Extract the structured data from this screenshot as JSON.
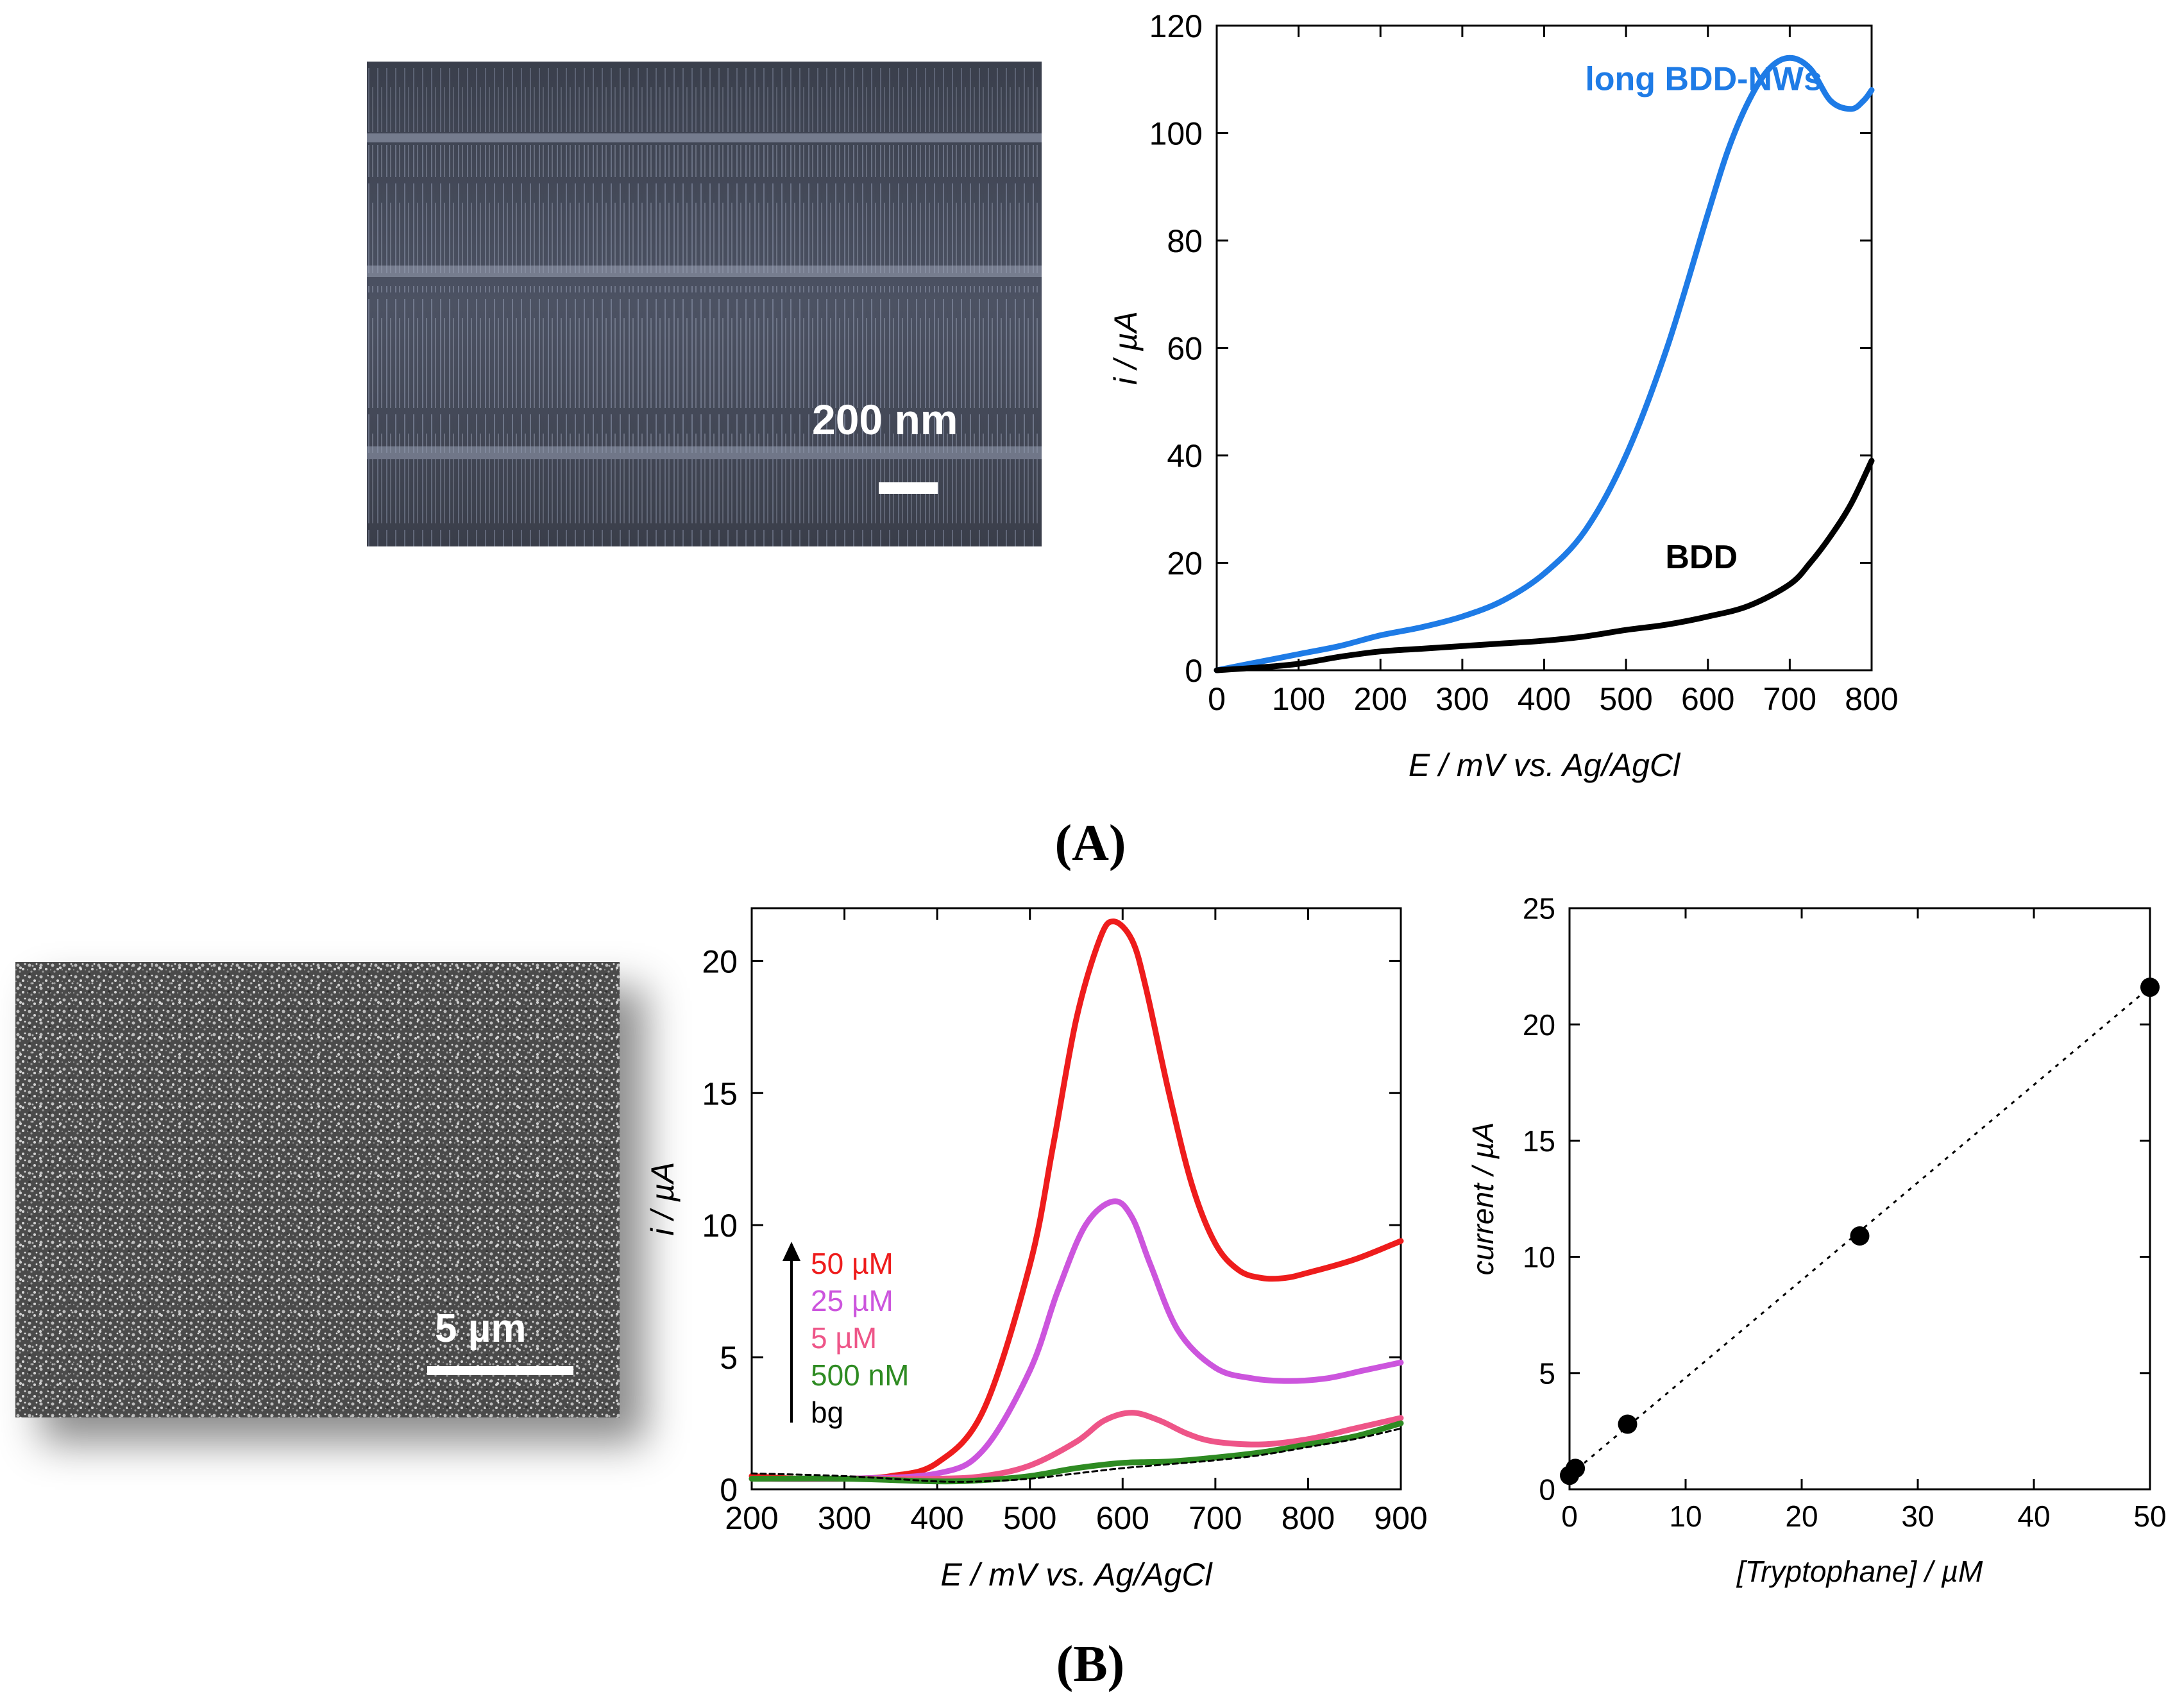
{
  "figure": {
    "panel_a_label": "(A)",
    "panel_b_label": "(B)"
  },
  "sem_a": {
    "scale_label": "200 nm"
  },
  "sem_b": {
    "scale_label": "5 µm"
  },
  "colors": {
    "blue": "#1E7BE6",
    "black": "#000000",
    "red": "#EE1C1C",
    "magenta": "#CC55DD",
    "pink": "#EE5588",
    "green": "#2E8B22",
    "bg": "#000000"
  },
  "chart_data": [
    {
      "id": "chartA",
      "type": "line",
      "xlabel": "E / mV vs. Ag/AgCl",
      "ylabel": "i / µA",
      "xlim": [
        0,
        800
      ],
      "ylim": [
        0,
        120
      ],
      "xticks": [
        0,
        100,
        200,
        300,
        400,
        500,
        600,
        700,
        800
      ],
      "yticks": [
        0,
        20,
        40,
        60,
        80,
        100,
        120
      ],
      "series": [
        {
          "name": "long BDD-NWs",
          "color": "#1E7BE6",
          "x": [
            0,
            50,
            100,
            150,
            200,
            250,
            300,
            350,
            400,
            450,
            500,
            550,
            600,
            625,
            650,
            675,
            700,
            725,
            750,
            775,
            790,
            800
          ],
          "y": [
            0,
            1.5,
            3,
            4.5,
            6.5,
            8,
            10,
            13,
            18,
            26,
            40,
            60,
            85,
            97,
            106,
            112,
            114,
            112,
            106,
            104.5,
            106,
            108
          ]
        },
        {
          "name": "BDD",
          "color": "#000000",
          "x": [
            0,
            50,
            100,
            150,
            200,
            250,
            300,
            350,
            400,
            450,
            500,
            550,
            600,
            650,
            700,
            725,
            750,
            775,
            800
          ],
          "y": [
            0,
            0.5,
            1.2,
            2.5,
            3.5,
            4,
            4.5,
            5,
            5.5,
            6.3,
            7.5,
            8.5,
            10,
            12,
            16,
            20,
            25,
            31,
            39
          ]
        }
      ],
      "annotations": [
        {
          "text": "long BDD-NWs",
          "x": 450,
          "y": 108,
          "color": "#1E7BE6"
        },
        {
          "text": "BDD",
          "x": 548,
          "y": 19,
          "color": "#000000"
        }
      ]
    },
    {
      "id": "chartB1",
      "type": "line",
      "xlabel": "E / mV vs. Ag/AgCl",
      "ylabel": "i / µA",
      "xlim": [
        200,
        900
      ],
      "ylim": [
        0,
        22
      ],
      "xticks": [
        200,
        300,
        400,
        500,
        600,
        700,
        800,
        900
      ],
      "yticks": [
        0,
        5,
        10,
        15,
        20
      ],
      "series": [
        {
          "name": "50 µM",
          "color": "#EE1C1C",
          "x": [
            200,
            250,
            300,
            350,
            400,
            450,
            500,
            525,
            550,
            575,
            590,
            610,
            625,
            650,
            675,
            700,
            725,
            750,
            775,
            800,
            850,
            900
          ],
          "y": [
            0.5,
            0.4,
            0.4,
            0.5,
            1.0,
            3.0,
            8.5,
            13.0,
            17.8,
            20.8,
            21.5,
            20.8,
            19.0,
            15.0,
            11.5,
            9.3,
            8.3,
            8.0,
            8.0,
            8.2,
            8.7,
            9.4
          ]
        },
        {
          "name": "25 µM",
          "color": "#CC55DD",
          "x": [
            200,
            300,
            400,
            450,
            500,
            530,
            560,
            590,
            610,
            630,
            660,
            700,
            740,
            780,
            820,
            860,
            900
          ],
          "y": [
            0.4,
            0.4,
            0.6,
            1.5,
            4.5,
            7.5,
            10.0,
            10.9,
            10.3,
            8.5,
            6.0,
            4.6,
            4.2,
            4.1,
            4.2,
            4.5,
            4.8
          ]
        },
        {
          "name": "5 µM",
          "color": "#EE5588",
          "x": [
            200,
            300,
            400,
            450,
            500,
            550,
            580,
            610,
            640,
            670,
            700,
            750,
            800,
            850,
            900
          ],
          "y": [
            0.4,
            0.4,
            0.4,
            0.5,
            0.9,
            1.8,
            2.6,
            2.9,
            2.6,
            2.1,
            1.8,
            1.7,
            1.9,
            2.3,
            2.7
          ]
        },
        {
          "name": "500 nM",
          "color": "#2E8B22",
          "x": [
            200,
            300,
            400,
            450,
            500,
            550,
            600,
            650,
            700,
            750,
            800,
            850,
            900
          ],
          "y": [
            0.4,
            0.4,
            0.3,
            0.35,
            0.5,
            0.8,
            1.0,
            1.05,
            1.2,
            1.4,
            1.7,
            2.0,
            2.5
          ]
        },
        {
          "name": "bg",
          "color": "#000000",
          "dashed": true,
          "x": [
            200,
            300,
            400,
            450,
            500,
            550,
            600,
            650,
            700,
            750,
            800,
            850,
            900
          ],
          "y": [
            0.6,
            0.5,
            0.3,
            0.3,
            0.4,
            0.6,
            0.8,
            0.95,
            1.1,
            1.3,
            1.6,
            1.9,
            2.3
          ]
        }
      ],
      "legend": [
        {
          "text": "50 µM",
          "color": "#EE1C1C"
        },
        {
          "text": "25 µM",
          "color": "#CC55DD"
        },
        {
          "text": "5 µM",
          "color": "#EE5588"
        },
        {
          "text": "500 nM",
          "color": "#2E8B22"
        },
        {
          "text": "bg",
          "color": "#000000"
        }
      ]
    },
    {
      "id": "chartB2",
      "type": "scatter",
      "xlabel": "[Tryptophane] / µM",
      "ylabel": "current / µA",
      "xlim": [
        0,
        50
      ],
      "ylim": [
        0,
        25
      ],
      "xticks": [
        0,
        10,
        20,
        30,
        40,
        50
      ],
      "yticks": [
        0,
        5,
        10,
        15,
        20,
        25
      ],
      "points": [
        {
          "x": 0,
          "y": 0.6
        },
        {
          "x": 0.5,
          "y": 0.9
        },
        {
          "x": 5,
          "y": 2.8
        },
        {
          "x": 25,
          "y": 10.9
        },
        {
          "x": 50,
          "y": 21.6
        }
      ],
      "fit_line": {
        "x": [
          0,
          50
        ],
        "y": [
          0.6,
          21.6
        ],
        "dashed": true
      }
    }
  ]
}
